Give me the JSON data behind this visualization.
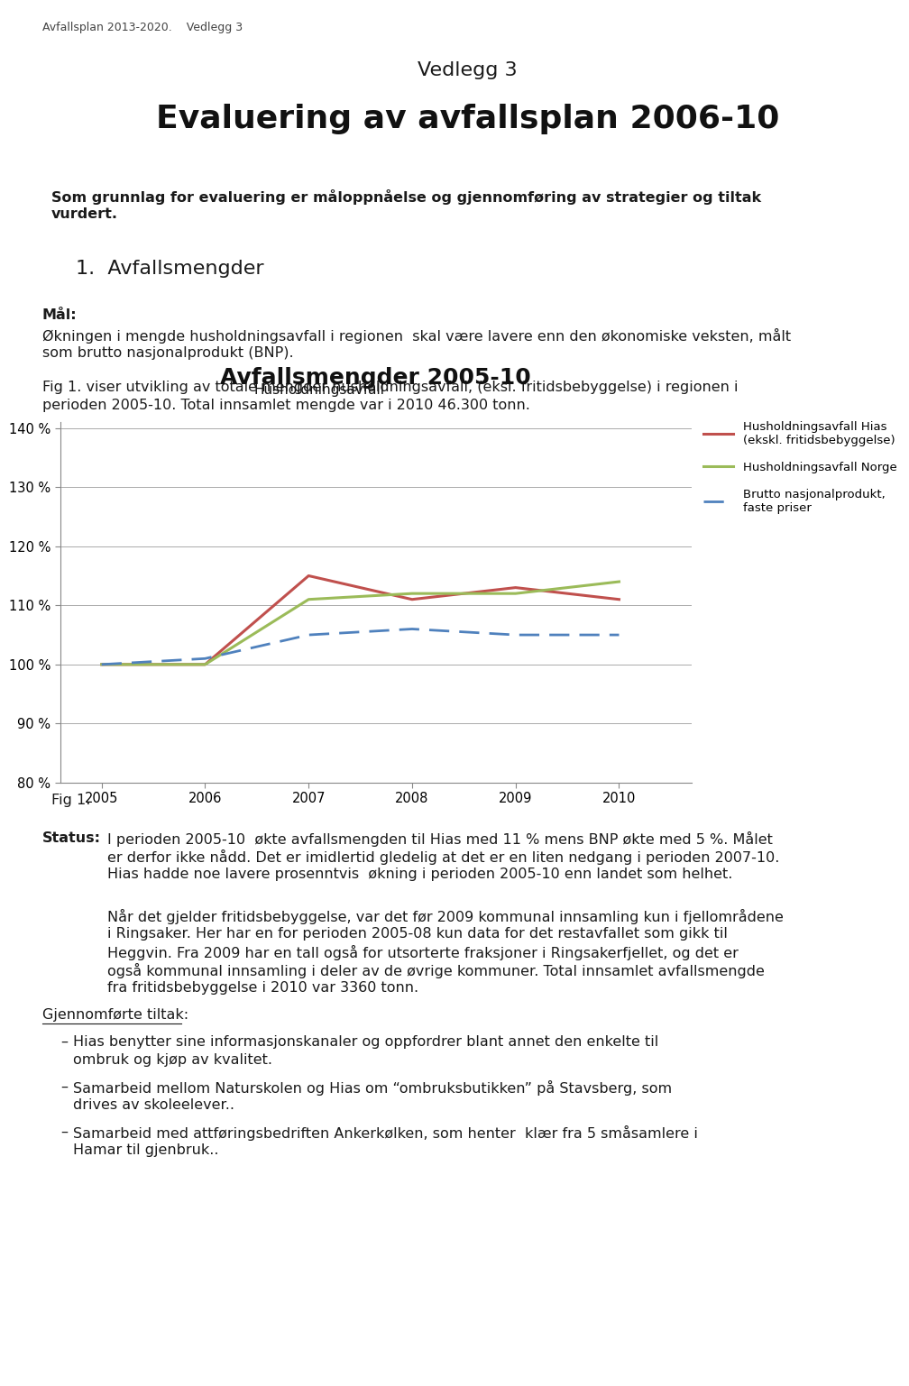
{
  "page_title_small": "Avfallsplan 2013-2020.    Vedlegg 3",
  "section_title": "Vedlegg 3",
  "main_title": "Evaluering av avfallsplan 2006-10",
  "intro_line1": "Som grunnlag for evaluering er måloppnåelse og gjennomføring av strategier og tiltak",
  "intro_line2": "vurdert.",
  "section1_title": "1.  Avfallsmengder",
  "mal_label": "Mål:",
  "mal_line1": "Økningen i mengde husholdningsavfall i regionen  skal være lavere enn den økonomiske veksten, målt",
  "mal_line2": "som brutto nasjonalprodukt (BNP).",
  "fig1_desc_line1": "Fig 1. viser utvikling av totale mengder husholdningsavfall, (eksl. fritidsbebyggelse) i regionen i",
  "fig1_desc_line2": "perioden 2005-10. Total innsamlet mengde var i 2010 46.300 tonn.",
  "chart_title": "Avfallsmengder 2005-10",
  "chart_subtitle": "Husholdningsavfall",
  "years": [
    2005,
    2006,
    2007,
    2008,
    2009,
    2010
  ],
  "hias_values": [
    100,
    100,
    115,
    111,
    113,
    111
  ],
  "norge_values": [
    100,
    100,
    111,
    112,
    112,
    114
  ],
  "bnp_values": [
    100,
    101,
    105,
    106,
    105,
    105
  ],
  "hias_color": "#C0504D",
  "norge_color": "#9BBB59",
  "bnp_color": "#4F81BD",
  "ylim_min": 80,
  "ylim_max": 141,
  "yticks": [
    80,
    90,
    100,
    110,
    120,
    130,
    140
  ],
  "legend_hias": "Husholdningsavfall Hias\n(ekskl. fritidsbebyggelse)",
  "legend_norge": "Husholdningsavfall Norge",
  "legend_bnp": "Brutto nasjonalprodukt,\nfaste priser",
  "fig1_label": "Fig 1.",
  "status_label": "Status:",
  "status_line1": "I perioden 2005-10  økte avfallsmengden til Hias med 11 % mens BNP økte med 5 %. Målet",
  "status_line2": "er derfor ikke nådd. Det er imidlertid gledelig at det er en liten nedgang i perioden 2007-10.",
  "status_line3": "Hias hadde noe lavere prosenntvis  økning i perioden 2005-10 enn landet som helhet.",
  "para2_lines": [
    "Når det gjelder fritidsbebyggelse, var det før 2009 kommunal innsamling kun i fjellområdene",
    "i Ringsaker. Her har en for perioden 2005-08 kun data for det restavfallet som gikk til",
    "Heggvin. Fra 2009 har en tall også for utsorterte fraksjoner i Ringsakerfjellet, og det er",
    "også kommunal innsamling i deler av de øvrige kommuner. Total innsamlet avfallsmengde",
    "fra fritidsbebyggelse i 2010 var 3360 tonn."
  ],
  "gjennomforte_label": "Gjennomførte tiltak:",
  "bullet1_lines": [
    "Hias benytter sine informasjonskanaler og oppfordrer blant annet den enkelte til",
    "ombruk og kjøp av kvalitet."
  ],
  "bullet2_lines": [
    "Samarbeid mellom Naturskolen og Hias om “ombruksbutikken” på Stavsberg, som",
    "drives av skoleelever.."
  ],
  "bullet3_lines": [
    "Samarbeid med attføringsbedriften Ankerkølken, som henter  klær fra 5 småsamlere i",
    "Hamar til gjenbruk.."
  ],
  "bg_color": "#ffffff",
  "text_color": "#1a1a1a",
  "grid_color": "#aaaaaa",
  "spine_color": "#888888"
}
